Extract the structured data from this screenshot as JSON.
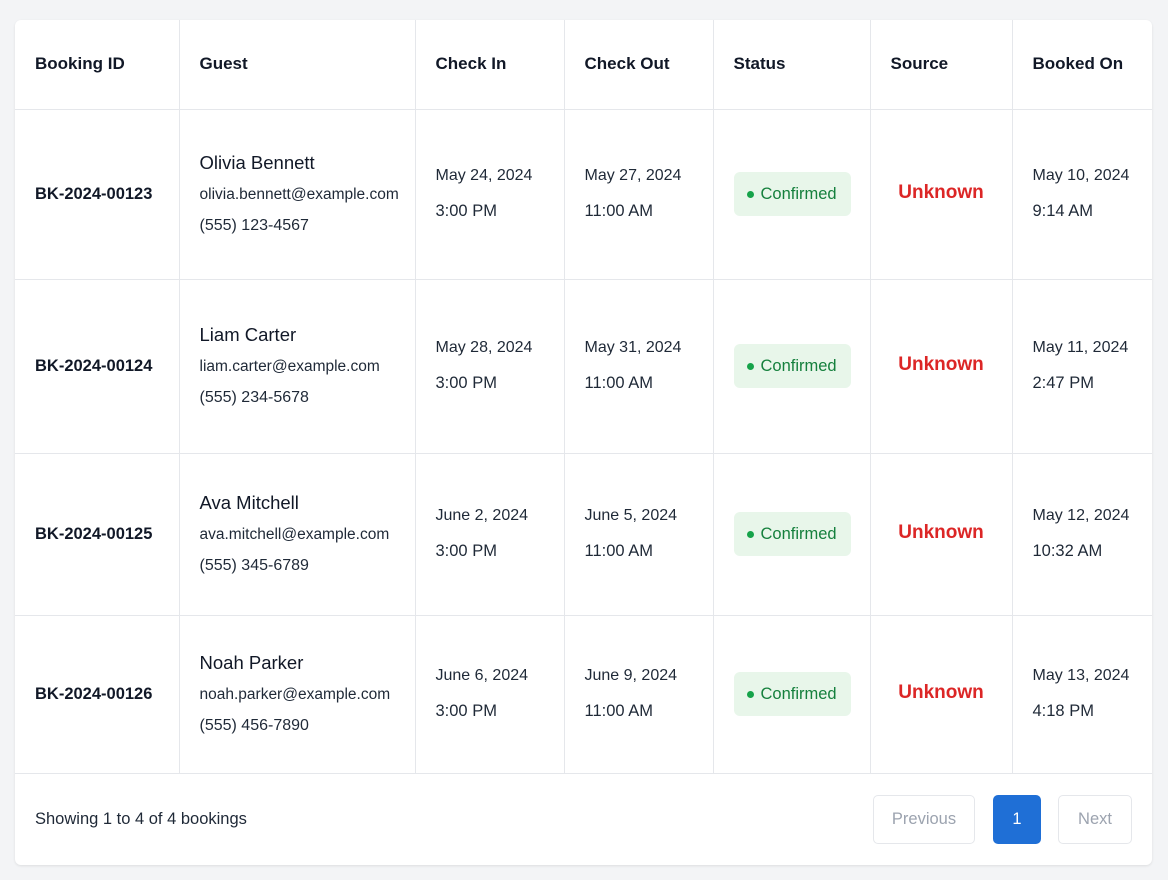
{
  "table": {
    "headers": [
      "Booking ID",
      "Guest",
      "Check In",
      "Check Out",
      "Status",
      "Source",
      "Booked On"
    ],
    "rows": [
      {
        "booking_id": "BK-2024-00123",
        "guest": {
          "name": "Olivia Bennett",
          "email": "olivia.bennett@example.com",
          "phone": "(555) 123-4567"
        },
        "check_in": {
          "date": "May 24, 2024",
          "time": "3:00 PM"
        },
        "check_out": {
          "date": "May 27, 2024",
          "time": "11:00 AM"
        },
        "status": "Confirmed",
        "source": "Unknown",
        "booked_on": {
          "date": "May 10, 2024",
          "time": "9:14 AM"
        }
      },
      {
        "booking_id": "BK-2024-00124",
        "guest": {
          "name": "Liam Carter",
          "email": "liam.carter@example.com",
          "phone": "(555) 234-5678"
        },
        "check_in": {
          "date": "May 28, 2024",
          "time": "3:00 PM"
        },
        "check_out": {
          "date": "May 31, 2024",
          "time": "11:00 AM"
        },
        "status": "Confirmed",
        "source": "Unknown",
        "booked_on": {
          "date": "May 11, 2024",
          "time": "2:47 PM"
        }
      },
      {
        "booking_id": "BK-2024-00125",
        "guest": {
          "name": "Ava Mitchell",
          "email": "ava.mitchell@example.com",
          "phone": "(555) 345-6789"
        },
        "check_in": {
          "date": "June 2, 2024",
          "time": "3:00 PM"
        },
        "check_out": {
          "date": "June 5, 2024",
          "time": "11:00 AM"
        },
        "status": "Confirmed",
        "source": "Unknown",
        "booked_on": {
          "date": "May 12, 2024",
          "time": "10:32 AM"
        }
      },
      {
        "booking_id": "BK-2024-00126",
        "guest": {
          "name": "Noah Parker",
          "email": "noah.parker@example.com",
          "phone": "(555) 456-7890"
        },
        "check_in": {
          "date": "June 6, 2024",
          "time": "3:00 PM"
        },
        "check_out": {
          "date": "June 9, 2024",
          "time": "11:00 AM"
        },
        "status": "Confirmed",
        "source": "Unknown",
        "booked_on": {
          "date": "May 13, 2024",
          "time": "4:18 PM"
        }
      }
    ]
  },
  "footer": {
    "showing": "Showing 1 to 4 of 4 bookings",
    "pagination": {
      "previous": "Previous",
      "current_page": "1",
      "next": "Next"
    }
  },
  "colors": {
    "status_confirmed_text": "#15803d",
    "status_confirmed_bg": "#e8f6ea",
    "source_unknown": "#dc2626",
    "active_page": "#1f6fd6"
  },
  "icons": {
    "status_dot": "status-dot-icon"
  }
}
